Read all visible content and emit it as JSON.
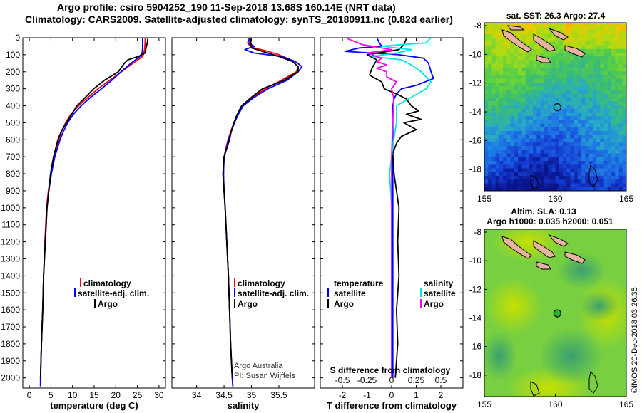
{
  "titles": {
    "line1": "Argo profile: csiro 5904252_190 11-Sep-2018 13.68S 160.14E (NRT data)",
    "line2": "Climatology: CARS2009. Satellite-adjusted climatology: synTS_20180911.nc (0.82d earlier)",
    "sst": "sat. SST: 26.3 Argo: 27.4",
    "sla1": "Altim. SLA: 0.13",
    "sla2": "Argo h1000: 0.035 h2000: 0.051"
  },
  "colors": {
    "climatology": "#ff0000",
    "satellite": "#0000ff",
    "argo": "#000000",
    "sal_satellite": "#00e5e5",
    "sal_argo": "#ff00ff"
  },
  "credit": {
    "line1": "Argo Australia",
    "line2": "PI: Susan Wijffels",
    "stamp": "©IMOS 20-Dec-2018 03:26:35"
  },
  "depth_axis": {
    "ticks": [
      0,
      100,
      200,
      300,
      400,
      500,
      600,
      700,
      800,
      900,
      1000,
      1100,
      1200,
      1300,
      1400,
      1500,
      1600,
      1700,
      1800,
      1900,
      2000
    ],
    "range": [
      0,
      2060
    ]
  },
  "chart_data": [
    {
      "type": "line",
      "name": "temperature",
      "xlabel": "temperature (deg C)",
      "xlim": [
        -1.5,
        31.5
      ],
      "xticks": [
        0,
        5,
        10,
        15,
        20,
        25,
        30
      ],
      "legend": [
        "climatology",
        "satellite-adj. clim.",
        "Argo"
      ],
      "series": [
        {
          "name": "climatology",
          "depth": [
            0,
            20,
            60,
            90,
            110,
            150,
            200,
            250,
            300,
            350,
            400,
            450,
            500,
            550,
            600,
            700,
            800,
            900,
            1000,
            1200,
            1400,
            1600,
            1800,
            2000,
            2050
          ],
          "values": [
            26.8,
            26.8,
            26.7,
            26.5,
            26.2,
            24,
            21.3,
            18.6,
            15.9,
            13.6,
            11.4,
            9.6,
            8.4,
            7.5,
            6.9,
            5.8,
            5,
            4.4,
            4,
            3.6,
            3.3,
            3.1,
            2.8,
            2.6,
            2.6
          ]
        },
        {
          "name": "satellite-adj. clim.",
          "depth": [
            0,
            20,
            60,
            90,
            110,
            150,
            200,
            250,
            300,
            350,
            400,
            450,
            500,
            550,
            600,
            700,
            800,
            900,
            1000,
            1200,
            1400,
            1600,
            1800,
            2000,
            2050
          ],
          "values": [
            26.2,
            26.2,
            26.2,
            26.1,
            25.6,
            23.5,
            21.2,
            19.1,
            16.7,
            14.2,
            12,
            10.2,
            8.9,
            7.9,
            7.1,
            5.9,
            5.1,
            4.5,
            4.1,
            3.7,
            3.3,
            3.1,
            2.8,
            2.6,
            2.6
          ]
        },
        {
          "name": "Argo",
          "depth": [
            5,
            30,
            60,
            90,
            110,
            130,
            150,
            200,
            250,
            300,
            350,
            400,
            450,
            500,
            550,
            600,
            700,
            800,
            900,
            1000,
            1200,
            1400,
            1600,
            1800,
            2000
          ],
          "values": [
            27.4,
            27.3,
            27,
            26.8,
            25.2,
            22.8,
            22,
            20.6,
            17.4,
            14.9,
            13,
            11,
            9.8,
            8.6,
            7.4,
            6.6,
            5.6,
            4.9,
            4.5,
            4.1,
            3.7,
            3.3,
            3.1,
            2.8,
            2.6
          ]
        }
      ]
    },
    {
      "type": "line",
      "name": "salinity",
      "xlabel": "salinity",
      "xlim": [
        33.55,
        36.15
      ],
      "xticks": [
        34,
        34.5,
        35,
        35.5
      ],
      "legend": [
        "climatology",
        "satellite-adj. clim.",
        "Argo"
      ],
      "series": [
        {
          "name": "climatology",
          "depth": [
            0,
            20,
            40,
            60,
            80,
            100,
            130,
            170,
            200,
            250,
            300,
            350,
            400,
            450,
            500,
            600,
            700,
            800,
            900,
            1000,
            1200,
            1400,
            1600,
            1800,
            2000,
            2050
          ],
          "values": [
            34.95,
            34.97,
            34.95,
            35.05,
            35.3,
            35.5,
            35.72,
            35.85,
            35.82,
            35.55,
            35.25,
            35.02,
            34.84,
            34.75,
            34.68,
            34.57,
            34.5,
            34.49,
            34.5,
            34.52,
            34.55,
            34.58,
            34.6,
            34.62,
            34.65,
            34.66
          ]
        },
        {
          "name": "satellite-adj. clim.",
          "depth": [
            0,
            30,
            50,
            70,
            90,
            110,
            140,
            170,
            200,
            250,
            300,
            350,
            400,
            450,
            500,
            600,
            700,
            800,
            900,
            1000,
            1200,
            1400,
            1600,
            1800,
            2000,
            2050
          ],
          "values": [
            34.97,
            34.93,
            35.05,
            34.88,
            35.05,
            35.55,
            35.8,
            35.92,
            35.85,
            35.65,
            35.3,
            35.05,
            34.85,
            34.76,
            34.69,
            34.58,
            34.5,
            34.49,
            34.5,
            34.52,
            34.55,
            34.58,
            34.6,
            34.62,
            34.65,
            34.66
          ]
        },
        {
          "name": "Argo",
          "depth": [
            5,
            30,
            60,
            90,
            110,
            140,
            170,
            200,
            250,
            300,
            350,
            400,
            450,
            500,
            550,
            600,
            700,
            800,
            900,
            1000,
            1200,
            1400,
            1600,
            1800,
            2000
          ],
          "values": [
            34.98,
            34.99,
            35,
            35.3,
            35.5,
            35.75,
            35.85,
            35.85,
            35.6,
            35.2,
            35,
            34.82,
            34.74,
            34.68,
            34.63,
            34.6,
            34.5,
            34.48,
            34.5,
            34.52,
            34.55,
            34.58,
            34.6,
            34.62,
            34.65
          ]
        }
      ]
    },
    {
      "type": "line",
      "name": "difference",
      "xlabel": "T difference from climatology",
      "xlabel_top": "S difference from climatology",
      "xlim": [
        -2.9,
        2.9
      ],
      "xticks": [
        -2,
        -1,
        0,
        1,
        2
      ],
      "xticks_s": [
        "-0.5",
        "-0.25",
        "0",
        "0.25",
        "0.5"
      ],
      "legend_t": [
        "temperature",
        "satellite",
        "Argo"
      ],
      "legend_s": [
        "salinity",
        "satellite",
        "Argo"
      ],
      "series": [
        {
          "name": "T satellite",
          "depth": [
            0,
            30,
            50,
            60,
            80,
            100,
            120,
            150,
            200,
            240,
            280,
            300,
            330,
            360,
            400,
            500,
            600,
            700,
            800,
            900,
            1000,
            1200,
            1500,
            2000
          ],
          "values": [
            -0.6,
            -0.5,
            -0.4,
            -1.3,
            -1.9,
            0.3,
            1.3,
            1.5,
            1.6,
            1.7,
            1,
            0.4,
            0.2,
            0.1,
            0.05,
            0.05,
            0.05,
            0.05,
            0.05,
            0.05,
            0.05,
            0.05,
            0.05,
            0.05
          ]
        },
        {
          "name": "T Argo",
          "depth": [
            5,
            40,
            70,
            100,
            130,
            180,
            220,
            260,
            300,
            330,
            360,
            400,
            430,
            450,
            480,
            500,
            540,
            580,
            620,
            680,
            800,
            1000,
            1200,
            1400,
            1600,
            1800,
            2000
          ],
          "values": [
            0.6,
            0.5,
            0.3,
            -1,
            -0.6,
            -0.8,
            -0.9,
            -0.4,
            -0.3,
            0.2,
            0.6,
            0.8,
            1.1,
            0.6,
            1.2,
            0.5,
            1,
            0.4,
            0.2,
            0.05,
            0.1,
            0.3,
            0.25,
            0.3,
            0.2,
            0.25,
            0.15
          ]
        },
        {
          "name": "S satellite",
          "depth": [
            0,
            30,
            50,
            70,
            90,
            110,
            130,
            160,
            200,
            230,
            260,
            300,
            350,
            400,
            500,
            600,
            700,
            800,
            900,
            1000,
            1200,
            1500,
            2000
          ],
          "values": [
            0.4,
            0.35,
            -0.1,
            0.2,
            0.05,
            -0.2,
            0.1,
            0.2,
            0.3,
            0.35,
            0.4,
            0.35,
            0.2,
            0.05,
            0.05,
            0.02,
            0,
            -0.02,
            -0.01,
            0,
            0,
            0,
            0
          ]
        },
        {
          "name": "S Argo",
          "depth": [
            5,
            40,
            70,
            90,
            100,
            120,
            140,
            160,
            180,
            200,
            230,
            260,
            300,
            350,
            400,
            500,
            700,
            900,
            1200,
            1600,
            2000
          ],
          "values": [
            -0.45,
            -0.3,
            0,
            -0.25,
            -0.2,
            -0.1,
            -0.15,
            -0.05,
            -0.15,
            -0.05,
            -0.05,
            0.05,
            0,
            0.02,
            0.02,
            0.01,
            0,
            0,
            0,
            0,
            0
          ]
        }
      ]
    },
    {
      "type": "heatmap",
      "name": "sst-map",
      "xlim": [
        155,
        165
      ],
      "ylim": [
        -19.5,
        -7.8
      ],
      "xticks": [
        155,
        160,
        165
      ],
      "yticks": [
        -8,
        -10,
        -12,
        -14,
        -16,
        -18
      ],
      "argo_position": [
        160.14,
        -13.68
      ]
    },
    {
      "type": "heatmap",
      "name": "sla-map",
      "xlim": [
        155,
        165
      ],
      "ylim": [
        -19.5,
        -7.8
      ],
      "xticks": [
        155,
        160,
        165
      ],
      "yticks": [
        -8,
        -10,
        -12,
        -14,
        -16,
        -18
      ],
      "argo_position": [
        160.14,
        -13.68
      ]
    }
  ]
}
